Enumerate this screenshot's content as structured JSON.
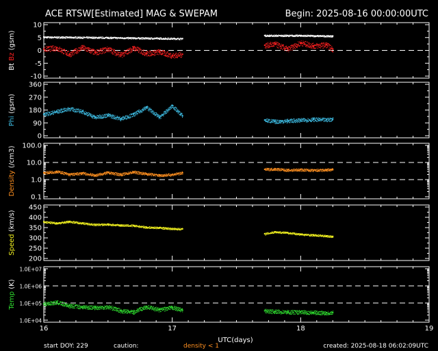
{
  "header": {
    "title": "ACE RTSW[Estimated] MAG & SWEPAM",
    "begin": "Begin: 2025-08-16 00:00:00UTC"
  },
  "footer": {
    "start_doy": "start DOY: 229",
    "caution": "caution:",
    "density_note": "density < 1",
    "created": "created: 2025-08-18 06:02:09UTC"
  },
  "colors": {
    "background": "#000000",
    "frame": "#ffffff",
    "bt": "#ffffff",
    "bz": "#ff2020",
    "phi": "#3fbfe6",
    "density": "#ff9020",
    "speed": "#f0f020",
    "temp": "#30e030",
    "caution": "#ff9020"
  },
  "chart_data": {
    "type": "scatter",
    "x_range": [
      16,
      19
    ],
    "x_ticks": [
      "16",
      "17",
      "18",
      "19"
    ],
    "x_label": "UTC(days)",
    "data_gap": [
      17.08,
      17.72
    ],
    "panels": [
      {
        "id": "mag",
        "ylabel_a": "Bt",
        "ylabel_b": "Bz",
        "ylabel_unit": "(gsm)",
        "scale": "linear",
        "ylim": [
          -10,
          10
        ],
        "ticks": [
          "10",
          "5",
          "0",
          "-5",
          "-10"
        ],
        "tick_values": [
          10,
          5,
          0,
          -5,
          -10
        ],
        "dashed": [
          0
        ],
        "series": [
          {
            "name": "Bt",
            "color": "#ffffff",
            "x": [
              16.0,
              16.5,
              17.08,
              17.72,
              18.0,
              18.25
            ],
            "y": [
              5.2,
              5.0,
              4.6,
              5.8,
              5.8,
              5.6
            ]
          },
          {
            "name": "Bz",
            "color": "#ff2020",
            "x": [
              16.0,
              16.1,
              16.2,
              16.3,
              16.4,
              16.5,
              16.6,
              16.7,
              16.8,
              16.9,
              17.0,
              17.08,
              17.72,
              17.8,
              17.9,
              18.0,
              18.1,
              18.2,
              18.25
            ],
            "y": [
              0.5,
              1.0,
              -1.5,
              1.2,
              -0.8,
              0.6,
              -1.8,
              1.0,
              -1.2,
              -0.5,
              -2.0,
              -1.5,
              2.0,
              2.5,
              0.5,
              3.0,
              1.8,
              2.2,
              0.5
            ]
          }
        ]
      },
      {
        "id": "phi",
        "ylabel": "Phi",
        "ylabel_unit": "(gsm)",
        "scale": "linear",
        "ylim": [
          0,
          360
        ],
        "ticks": [
          "360",
          "270",
          "180",
          "90",
          "0"
        ],
        "tick_values": [
          360,
          270,
          180,
          90,
          0
        ],
        "dashed": [],
        "series": [
          {
            "name": "Phi",
            "color": "#3fbfe6",
            "x": [
              16.0,
              16.1,
              16.2,
              16.3,
              16.4,
              16.5,
              16.6,
              16.7,
              16.8,
              16.9,
              17.0,
              17.08,
              17.72,
              17.8,
              17.9,
              18.0,
              18.1,
              18.2,
              18.25
            ],
            "y": [
              150,
              170,
              190,
              170,
              130,
              145,
              120,
              150,
              200,
              130,
              210,
              140,
              110,
              100,
              105,
              110,
              115,
              112,
              118
            ]
          }
        ]
      },
      {
        "id": "density",
        "ylabel": "Density",
        "ylabel_unit": "(/cm3)",
        "scale": "log",
        "ylim": [
          0.1,
          100
        ],
        "ticks": [
          "100.0",
          "10.0",
          "1.0",
          "0.1"
        ],
        "tick_values": [
          100,
          10,
          1,
          0.1
        ],
        "dashed": [
          10,
          1
        ],
        "series": [
          {
            "name": "Density",
            "color": "#ff9020",
            "x": [
              16.0,
              16.1,
              16.2,
              16.3,
              16.4,
              16.5,
              16.6,
              16.7,
              16.8,
              16.9,
              17.0,
              17.08,
              17.72,
              17.8,
              17.9,
              18.0,
              18.1,
              18.2,
              18.25
            ],
            "y": [
              2.5,
              3.0,
              2.0,
              2.4,
              1.8,
              2.6,
              2.0,
              2.8,
              2.2,
              1.8,
              2.0,
              2.5,
              4.0,
              4.2,
              3.6,
              3.8,
              3.5,
              3.7,
              3.9
            ]
          }
        ]
      },
      {
        "id": "speed",
        "ylabel": "Speed",
        "ylabel_unit": "(km/s)",
        "scale": "linear",
        "ylim": [
          200,
          450
        ],
        "ticks": [
          "450",
          "400",
          "350",
          "300",
          "250",
          "200"
        ],
        "tick_values": [
          450,
          400,
          350,
          300,
          250,
          200
        ],
        "dashed": [],
        "series": [
          {
            "name": "Speed",
            "color": "#f0f020",
            "x": [
              16.0,
              16.1,
              16.2,
              16.3,
              16.4,
              16.5,
              16.6,
              16.7,
              16.8,
              16.9,
              17.0,
              17.08,
              17.72,
              17.8,
              17.9,
              18.0,
              18.1,
              18.2,
              18.25
            ],
            "y": [
              378,
              372,
              380,
              372,
              365,
              366,
              362,
              360,
              352,
              350,
              345,
              344,
              320,
              330,
              325,
              318,
              314,
              310,
              306
            ]
          }
        ]
      },
      {
        "id": "temp",
        "ylabel": "Temp",
        "ylabel_unit": "(K)",
        "scale": "log",
        "ylim": [
          10000,
          10000000
        ],
        "ticks": [
          "1.0E+07",
          "1.0E+06",
          "1.0E+05",
          "1.0E+04"
        ],
        "tick_values": [
          10000000,
          1000000,
          100000,
          10000
        ],
        "dashed": [
          1000000,
          100000
        ],
        "series": [
          {
            "name": "Temp",
            "color": "#30e030",
            "x": [
              16.0,
              16.1,
              16.2,
              16.3,
              16.4,
              16.5,
              16.6,
              16.7,
              16.8,
              16.9,
              17.0,
              17.08,
              17.72,
              17.8,
              17.9,
              18.0,
              18.1,
              18.2,
              18.25
            ],
            "y": [
              90000,
              110000,
              70000,
              60000,
              55000,
              60000,
              35000,
              30000,
              60000,
              40000,
              55000,
              38000,
              35000,
              32000,
              30000,
              30000,
              28000,
              27000,
              28000
            ]
          }
        ]
      }
    ]
  }
}
